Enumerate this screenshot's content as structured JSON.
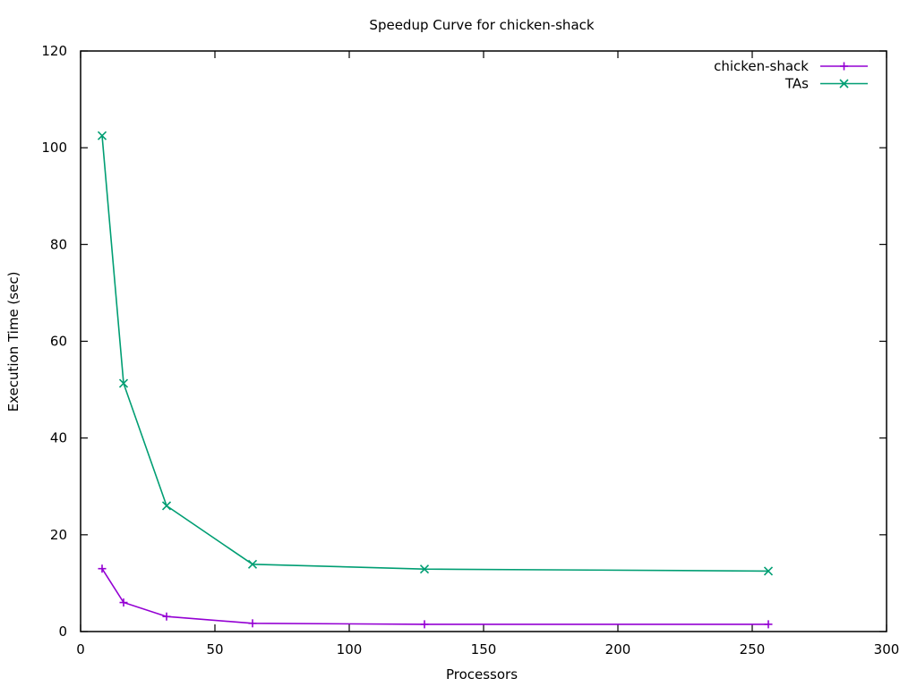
{
  "chart_data": {
    "type": "line",
    "title": "Speedup Curve for chicken-shack",
    "xlabel": "Processors",
    "ylabel": "Execution Time (sec)",
    "xlim": [
      0,
      300
    ],
    "ylim": [
      0,
      120
    ],
    "xticks": [
      0,
      50,
      100,
      150,
      200,
      250,
      300
    ],
    "yticks": [
      0,
      20,
      40,
      60,
      80,
      100,
      120
    ],
    "grid": false,
    "legend_position": "top-right",
    "series": [
      {
        "name": "chicken-shack",
        "color": "#9400d3",
        "marker": "plus",
        "x": [
          8,
          16,
          32,
          64,
          128,
          256
        ],
        "y": [
          13.0,
          6.0,
          3.1,
          1.7,
          1.5,
          1.5
        ]
      },
      {
        "name": "TAs",
        "color": "#009e73",
        "marker": "cross",
        "x": [
          8,
          16,
          32,
          64,
          128,
          256
        ],
        "y": [
          102.5,
          51.3,
          26.0,
          13.9,
          12.9,
          12.5
        ]
      }
    ]
  }
}
